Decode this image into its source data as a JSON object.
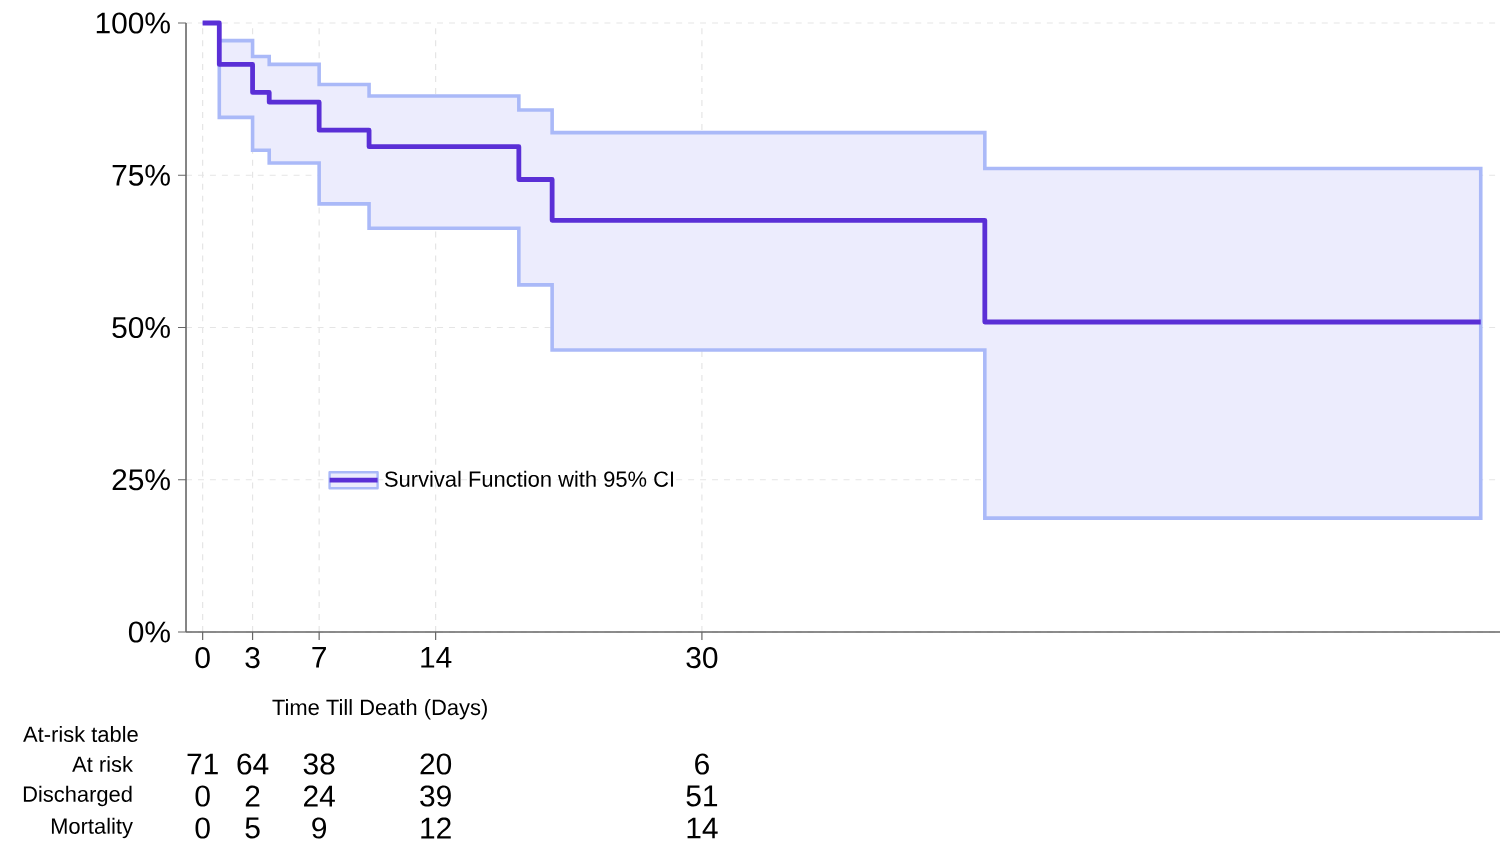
{
  "chart_data": {
    "type": "step",
    "xlabel": "Time Till Death (Days)",
    "x": [
      0,
      1,
      3,
      4,
      7,
      10,
      19,
      21,
      47,
      76.8
    ],
    "series": [
      {
        "name": "Survival Function with 95% CI",
        "color": "#5a2fd6",
        "values": [
          100,
          93.2,
          88.6,
          87.0,
          82.4,
          79.7,
          74.3,
          67.6,
          50.9,
          50.9
        ],
        "upper": [
          100,
          97.1,
          94.5,
          93.2,
          89.9,
          88.0,
          85.7,
          82.0,
          76.1,
          76.1
        ],
        "lower": [
          100,
          84.5,
          79.1,
          77.0,
          70.3,
          66.3,
          57.0,
          46.3,
          18.7,
          18.7
        ]
      }
    ],
    "xlim": [
      -1,
      80
    ],
    "xticks": [
      0,
      3,
      7,
      14,
      30
    ],
    "ylim": [
      0,
      100
    ],
    "yticks": [
      {
        "value": 0,
        "label": "0%"
      },
      {
        "value": 25,
        "label": "25%"
      },
      {
        "value": 50,
        "label": "50%"
      },
      {
        "value": 75,
        "label": "75%"
      },
      {
        "value": 100,
        "label": "100%"
      }
    ],
    "grid": true,
    "legend": "bottom left",
    "line_style": "solid",
    "marker": "none",
    "annotations": [
      "At-risk table",
      "At risk",
      "71",
      "64",
      "38",
      "20",
      "6",
      "Discharged",
      "0",
      "2",
      "24",
      "39",
      "51",
      "Mortality",
      "0",
      "5",
      "9",
      "12",
      "14"
    ]
  }
}
